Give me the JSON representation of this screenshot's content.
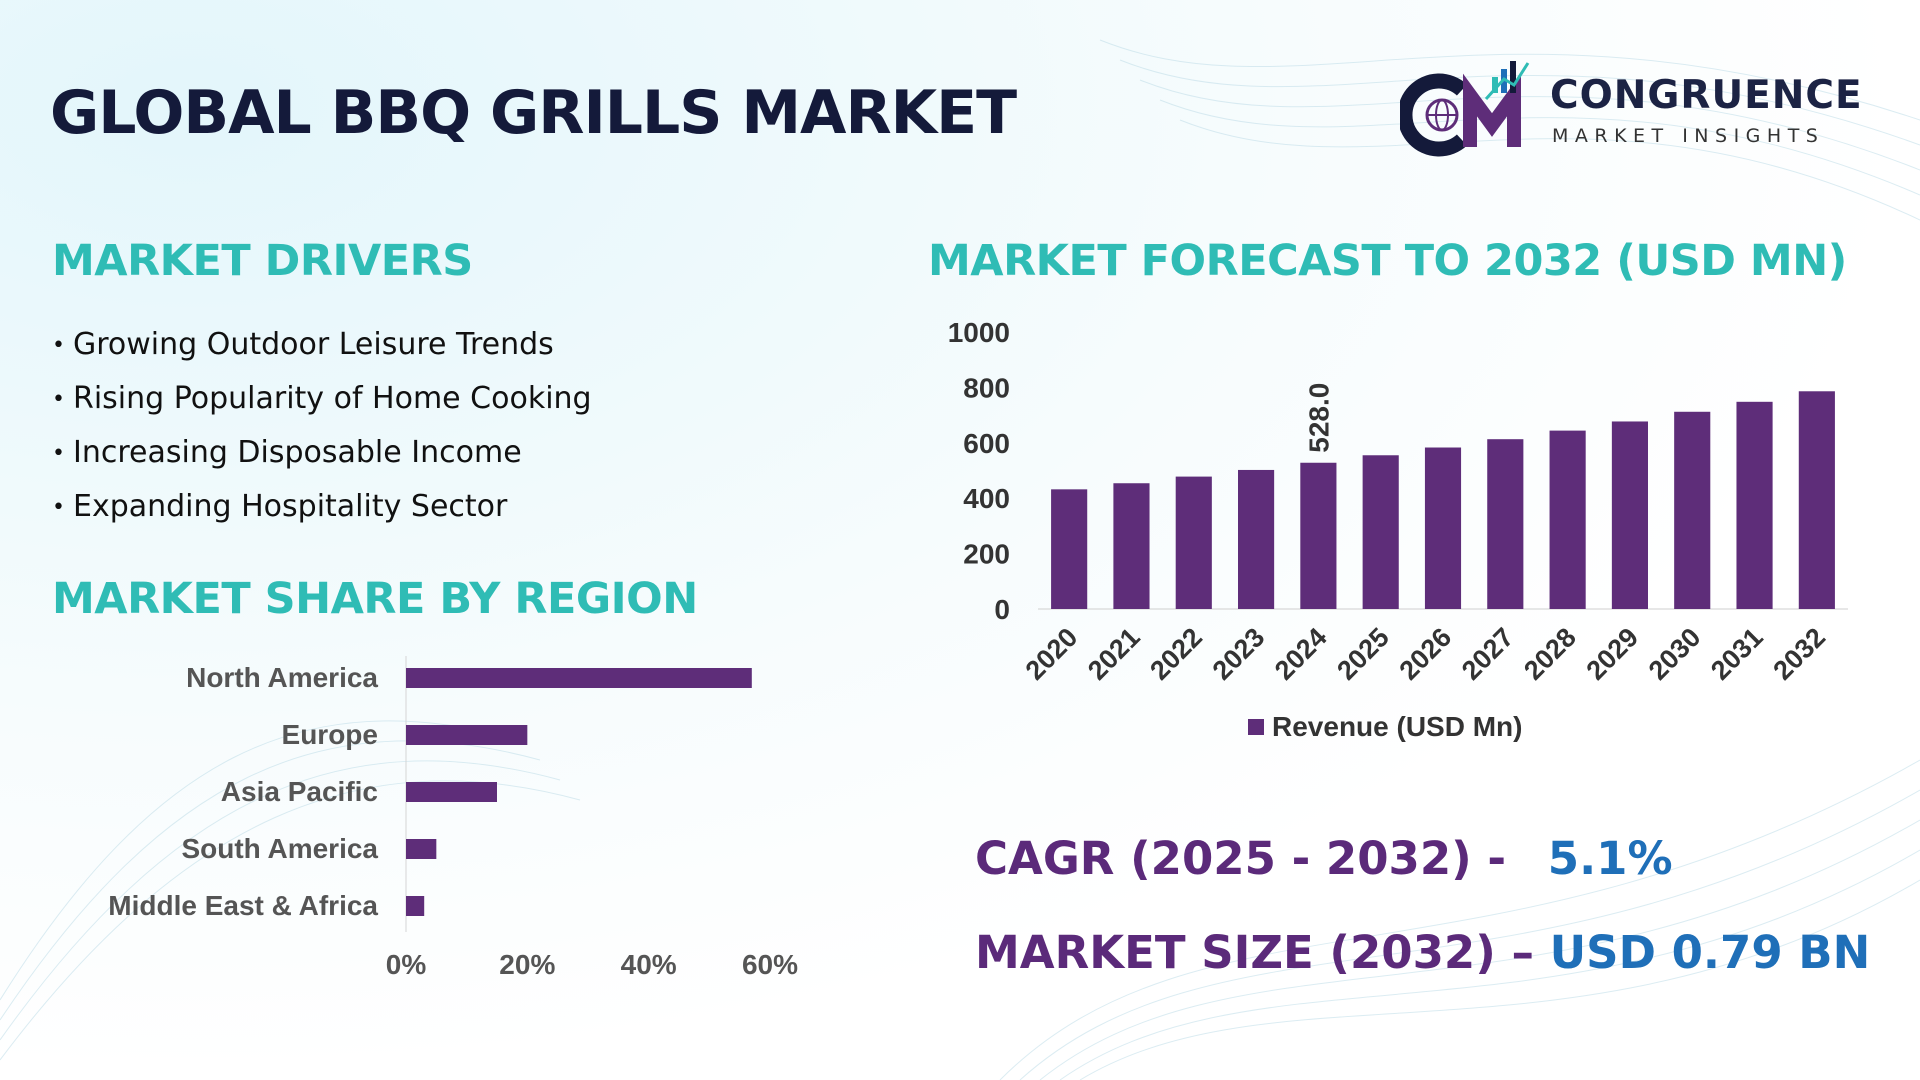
{
  "header": {
    "title": "GLOBAL BBQ GRILLS MARKET",
    "logo_name": "CONGRUENCE",
    "logo_subtitle": "MARKET INSIGHTS"
  },
  "drivers": {
    "heading": "MARKET DRIVERS",
    "items": [
      "Growing Outdoor Leisure Trends",
      "Rising Popularity of Home Cooking",
      "Increasing Disposable Income",
      "Expanding Hospitality Sector"
    ]
  },
  "region": {
    "heading": "MARKET SHARE BY REGION"
  },
  "forecast": {
    "heading": "MARKET FORECAST TO 2032 (USD MN)"
  },
  "stats": {
    "cagr_label": "CAGR (2025 - 2032) -",
    "cagr_value": "5.1%",
    "size_label": "MARKET SIZE (2032) –",
    "size_value": "USD 0.79 BN"
  },
  "colors": {
    "bar": "#5e2d79",
    "heading": "#2fbcb5",
    "title": "#141a3a",
    "stat_label": "#5b2a7a",
    "stat_value": "#1f6fb8"
  },
  "chart_data": [
    {
      "type": "bar",
      "orientation": "horizontal",
      "categories": [
        "North America",
        "Europe",
        "Asia Pacific",
        "South America",
        "Middle East & Africa"
      ],
      "values": [
        57,
        20,
        15,
        5,
        3
      ],
      "x_ticks": [
        "0%",
        "20%",
        "40%",
        "60%"
      ],
      "xlim": [
        0,
        60
      ],
      "grid": false
    },
    {
      "type": "bar",
      "categories": [
        "2020",
        "2021",
        "2022",
        "2023",
        "2024",
        "2025",
        "2026",
        "2027",
        "2028",
        "2029",
        "2030",
        "2031",
        "2032"
      ],
      "series": [
        {
          "name": "Revenue (USD Mn)",
          "values": [
            432,
            454,
            478,
            502,
            528,
            555,
            583,
            613,
            644,
            677,
            712,
            748,
            786
          ]
        }
      ],
      "data_labels": [
        {
          "category": "2024",
          "label": "528.0"
        }
      ],
      "y_ticks": [
        "0",
        "200",
        "400",
        "600",
        "800",
        "1000"
      ],
      "ylim": [
        0,
        1000
      ],
      "legend": "bottom",
      "grid": false
    }
  ]
}
